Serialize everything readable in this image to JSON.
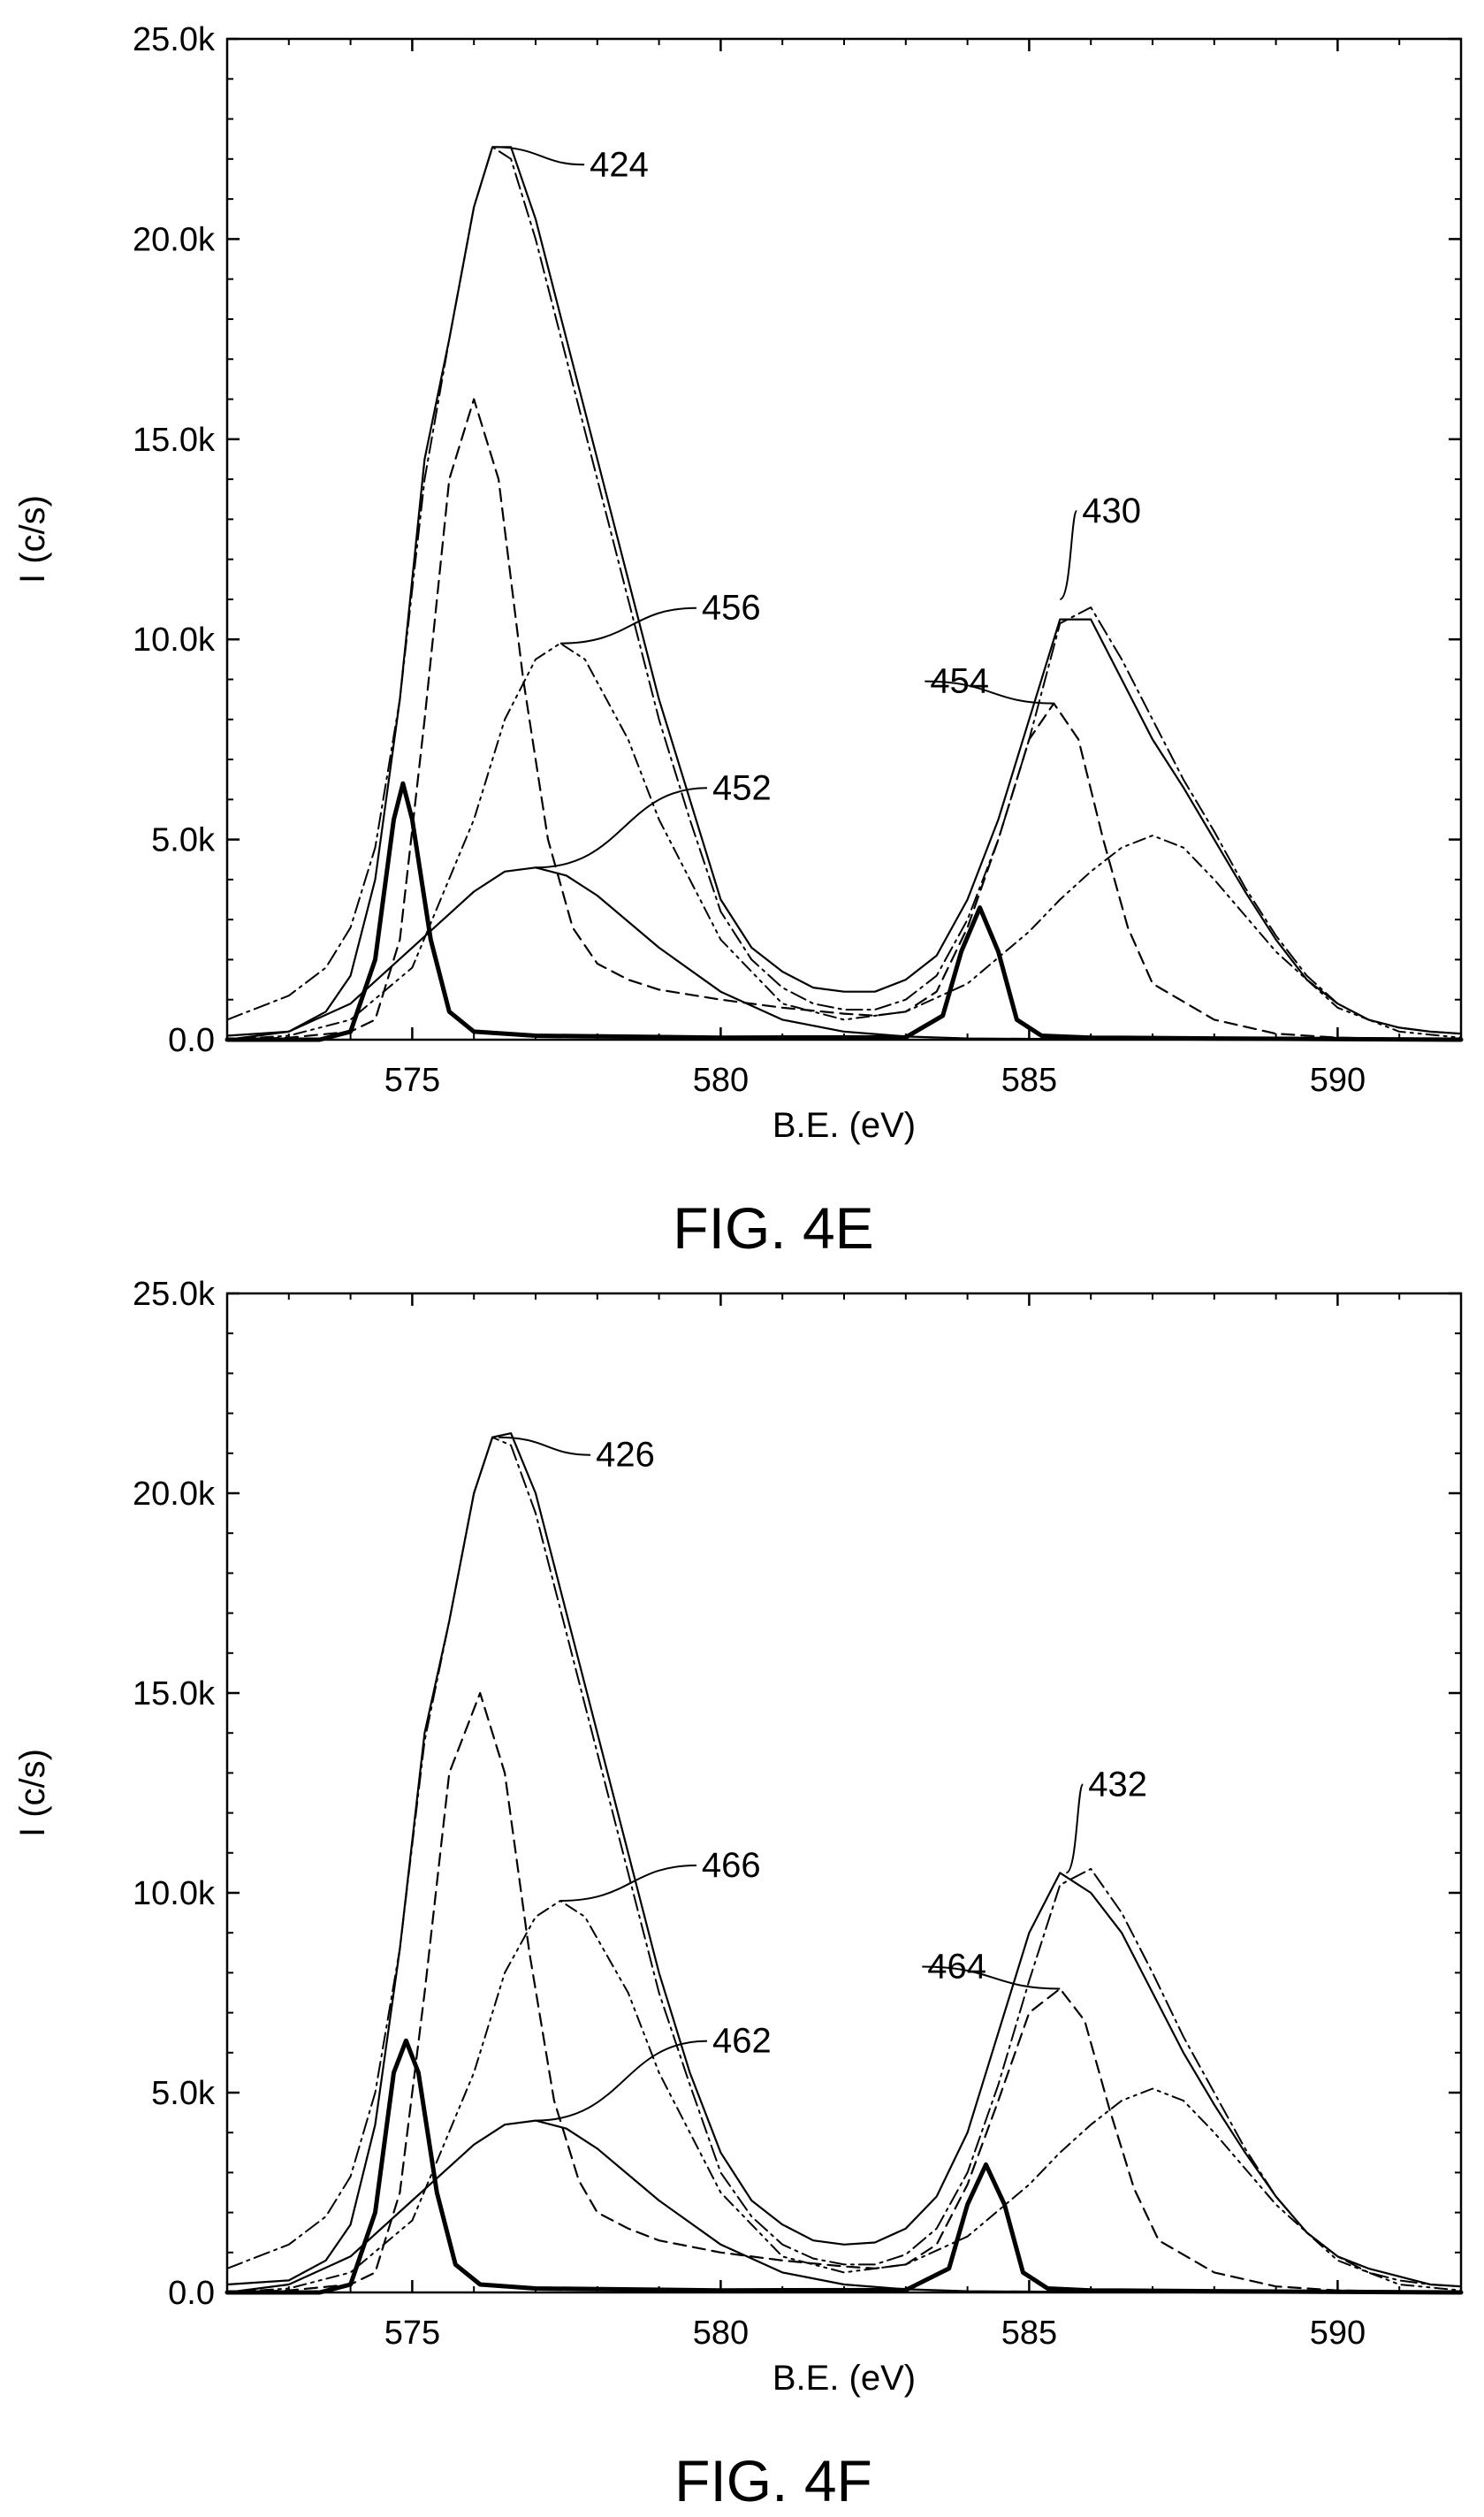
{
  "figures": [
    {
      "caption": "FIG. 4E"
    },
    {
      "caption": "FIG. 4F"
    }
  ],
  "chart_data": [
    {
      "type": "line",
      "title": "",
      "caption": "FIG. 4E",
      "xlabel": "B.E. (eV)",
      "ylabel": "I (c/s)",
      "xlim": [
        572,
        592
      ],
      "ylim": [
        0,
        25000
      ],
      "xticks": [
        575,
        580,
        585,
        590
      ],
      "xtick_labels": [
        "575",
        "580",
        "585",
        "590"
      ],
      "yticks": [
        0,
        5000,
        10000,
        15000,
        20000,
        25000
      ],
      "ytick_labels": [
        "0.0",
        "5.0k",
        "10.0k",
        "15.0k",
        "20.0k",
        "25.0k"
      ],
      "series": [
        {
          "style": "solid-thin",
          "x": [
            572,
            573,
            573.6,
            574,
            574.4,
            574.8,
            575.2,
            575.6,
            576,
            576.3,
            576.6,
            577,
            577.5,
            578,
            578.5,
            579,
            579.5,
            580,
            580.5,
            581,
            581.5,
            582,
            582.5,
            583,
            583.5,
            584,
            584.5,
            585,
            585.5,
            586,
            586.5,
            587,
            587.5,
            588,
            588.5,
            589,
            589.5,
            590,
            590.5,
            591,
            591.5,
            592
          ],
          "y": [
            100,
            200,
            700,
            1600,
            4000,
            8500,
            14500,
            17500,
            20800,
            22300,
            22300,
            20500,
            17500,
            14500,
            11500,
            8500,
            6000,
            3500,
            2300,
            1700,
            1300,
            1200,
            1200,
            1500,
            2100,
            3500,
            5500,
            8000,
            10500,
            10500,
            9000,
            7500,
            6300,
            5000,
            3700,
            2500,
            1500,
            900,
            500,
            300,
            200,
            150
          ]
        },
        {
          "style": "dash-dot",
          "x": [
            572,
            573,
            573.6,
            574,
            574.4,
            574.8,
            575.2,
            575.6,
            576,
            576.3,
            576.6,
            577,
            577.5,
            578,
            578.5,
            579,
            579.5,
            580,
            580.5,
            581,
            581.5,
            582,
            582.5,
            583,
            583.5,
            584,
            584.5,
            585,
            585.5,
            586,
            586.5,
            587,
            587.5,
            588,
            588.5,
            589,
            589.5,
            590,
            590.5,
            591,
            591.5,
            592
          ],
          "y": [
            500,
            1100,
            1800,
            2800,
            4800,
            8500,
            14000,
            17500,
            20800,
            22300,
            22000,
            20000,
            17000,
            14000,
            11000,
            8000,
            5500,
            3200,
            2000,
            1300,
            900,
            750,
            750,
            1000,
            1600,
            3000,
            5000,
            7500,
            10400,
            10800,
            9500,
            8000,
            6500,
            5200,
            3800,
            2600,
            1600,
            900,
            500,
            300,
            200,
            150
          ]
        },
        {
          "style": "dashed",
          "x": [
            572,
            573,
            574,
            574.4,
            574.8,
            575.2,
            575.6,
            576,
            576.4,
            576.8,
            577.2,
            577.6,
            578,
            578.5,
            579,
            580,
            581,
            582,
            582.5,
            583,
            583.5,
            584,
            584.5,
            585,
            585.4,
            585.8,
            586.2,
            586.6,
            587,
            588,
            589,
            590,
            592
          ],
          "y": [
            0,
            50,
            200,
            500,
            2500,
            8000,
            14000,
            16000,
            14000,
            9000,
            5000,
            2800,
            1900,
            1500,
            1250,
            1000,
            800,
            650,
            600,
            700,
            1200,
            2800,
            5000,
            7500,
            8400,
            7500,
            5000,
            2800,
            1400,
            500,
            150,
            50,
            0
          ]
        },
        {
          "style": "dash-dot-dot",
          "x": [
            572,
            573,
            574,
            575,
            576,
            576.5,
            577,
            577.4,
            577.8,
            578.5,
            579,
            580,
            581,
            582,
            583,
            584,
            585,
            585.5,
            586,
            586.5,
            587,
            587.5,
            588,
            589,
            590,
            591,
            592
          ],
          "y": [
            0,
            100,
            500,
            1800,
            5500,
            8000,
            9500,
            9900,
            9500,
            7500,
            5500,
            2500,
            900,
            500,
            700,
            1400,
            2700,
            3500,
            4200,
            4800,
            5100,
            4800,
            4000,
            2200,
            800,
            200,
            50
          ]
        },
        {
          "style": "solid-thick",
          "x": [
            572,
            573.5,
            574,
            574.4,
            574.7,
            574.85,
            575,
            575.3,
            575.6,
            576,
            577,
            580,
            583,
            583.6,
            583.9,
            584.2,
            584.5,
            584.8,
            585.2,
            586,
            588,
            592
          ],
          "y": [
            0,
            0,
            200,
            2000,
            5500,
            6400,
            5500,
            2500,
            700,
            200,
            100,
            50,
            60,
            600,
            2200,
            3300,
            2200,
            500,
            100,
            50,
            30,
            0
          ]
        },
        {
          "style": "solid-broad",
          "x": [
            572,
            573,
            574,
            575,
            575.5,
            576,
            576.5,
            577,
            577.5,
            578,
            579,
            580,
            581,
            582,
            583,
            584,
            586,
            588,
            592
          ],
          "y": [
            0,
            200,
            900,
            2300,
            3000,
            3700,
            4200,
            4300,
            4100,
            3600,
            2300,
            1200,
            500,
            200,
            80,
            30,
            10,
            0,
            0
          ]
        }
      ],
      "annotations": [
        {
          "text": "424",
          "x": 576.3,
          "y": 22300
        },
        {
          "text": "430",
          "x": 585.5,
          "y": 11000
        },
        {
          "text": "456",
          "x": 577.4,
          "y": 9900
        },
        {
          "text": "454",
          "x": 585.4,
          "y": 8400
        },
        {
          "text": "452",
          "x": 577,
          "y": 4300
        }
      ]
    },
    {
      "type": "line",
      "title": "",
      "caption": "FIG. 4F",
      "xlabel": "B.E. (eV)",
      "ylabel": "I (c/s)",
      "xlim": [
        572,
        592
      ],
      "ylim": [
        0,
        25000
      ],
      "xticks": [
        575,
        580,
        585,
        590
      ],
      "xtick_labels": [
        "575",
        "580",
        "585",
        "590"
      ],
      "yticks": [
        0,
        5000,
        10000,
        15000,
        20000,
        25000
      ],
      "ytick_labels": [
        "0.0",
        "5.0k",
        "10.0k",
        "15.0k",
        "20.0k",
        "25.0k"
      ],
      "series": [
        {
          "style": "solid-thin",
          "x": [
            572,
            573,
            573.6,
            574,
            574.4,
            574.8,
            575.2,
            575.6,
            576,
            576.3,
            576.6,
            577,
            577.5,
            578,
            578.5,
            579,
            579.5,
            580,
            580.5,
            581,
            581.5,
            582,
            582.5,
            583,
            583.5,
            584,
            584.5,
            585,
            585.5,
            586,
            586.5,
            587,
            587.5,
            588,
            588.5,
            589,
            589.5,
            590,
            590.5,
            591,
            591.5,
            592
          ],
          "y": [
            200,
            300,
            800,
            1700,
            4200,
            8600,
            14000,
            16800,
            20000,
            21400,
            21500,
            20000,
            17000,
            14000,
            11000,
            8000,
            5500,
            3500,
            2300,
            1700,
            1300,
            1200,
            1250,
            1600,
            2400,
            4000,
            6500,
            9000,
            10500,
            10000,
            9000,
            7500,
            6000,
            4700,
            3500,
            2400,
            1500,
            900,
            600,
            400,
            200,
            150
          ]
        },
        {
          "style": "dash-dot",
          "x": [
            572,
            573,
            573.6,
            574,
            574.4,
            574.8,
            575.2,
            575.6,
            576,
            576.3,
            576.6,
            577,
            577.5,
            578,
            578.5,
            579,
            579.5,
            580,
            580.5,
            581,
            581.5,
            582,
            582.5,
            583,
            583.5,
            584,
            584.5,
            585,
            585.5,
            586,
            586.5,
            587,
            587.5,
            588,
            588.5,
            589,
            589.5,
            590,
            590.5,
            591,
            591.5,
            592
          ],
          "y": [
            600,
            1200,
            1900,
            2900,
            5000,
            8600,
            13800,
            16800,
            20000,
            21400,
            21200,
            19500,
            16500,
            13500,
            10500,
            7500,
            5200,
            3000,
            1900,
            1200,
            850,
            700,
            700,
            950,
            1600,
            3000,
            5200,
            7800,
            10200,
            10600,
            9500,
            8000,
            6400,
            5000,
            3600,
            2400,
            1500,
            900,
            500,
            300,
            200,
            150
          ]
        },
        {
          "style": "dashed",
          "x": [
            572,
            573,
            574,
            574.4,
            574.8,
            575.2,
            575.6,
            576.1,
            576.5,
            576.9,
            577.3,
            577.7,
            578,
            578.5,
            579,
            580,
            581,
            582,
            582.5,
            583,
            583.5,
            584,
            584.5,
            585,
            585.5,
            585.9,
            586.3,
            586.7,
            587.1,
            588,
            589,
            590,
            592
          ],
          "y": [
            0,
            50,
            200,
            500,
            2500,
            7500,
            13000,
            15000,
            13000,
            8500,
            4800,
            2800,
            2000,
            1600,
            1300,
            1000,
            800,
            650,
            600,
            700,
            1200,
            2700,
            4800,
            7000,
            7600,
            6800,
            4600,
            2600,
            1300,
            500,
            150,
            50,
            0
          ]
        },
        {
          "style": "dash-dot-dot",
          "x": [
            572,
            573,
            574,
            575,
            576,
            576.5,
            577,
            577.4,
            577.8,
            578.5,
            579,
            580,
            581,
            582,
            583,
            584,
            585,
            585.5,
            586,
            586.5,
            587,
            587.5,
            588,
            589,
            590,
            591,
            592
          ],
          "y": [
            0,
            100,
            500,
            1800,
            5500,
            8000,
            9400,
            9800,
            9400,
            7500,
            5500,
            2500,
            900,
            500,
            700,
            1400,
            2700,
            3500,
            4200,
            4800,
            5100,
            4800,
            4000,
            2200,
            800,
            200,
            50
          ]
        },
        {
          "style": "solid-thick",
          "x": [
            572,
            573.5,
            574,
            574.4,
            574.7,
            574.9,
            575.1,
            575.4,
            575.7,
            576.1,
            577,
            580,
            583,
            583.7,
            584,
            584.3,
            584.6,
            584.9,
            585.3,
            586,
            588,
            592
          ],
          "y": [
            0,
            0,
            200,
            2000,
            5500,
            6300,
            5500,
            2500,
            700,
            200,
            100,
            50,
            60,
            600,
            2200,
            3200,
            2200,
            500,
            100,
            50,
            30,
            0
          ]
        },
        {
          "style": "solid-broad",
          "x": [
            572,
            573,
            574,
            575,
            575.5,
            576,
            576.5,
            577,
            577.5,
            578,
            579,
            580,
            581,
            582,
            583,
            584,
            586,
            588,
            592
          ],
          "y": [
            0,
            200,
            900,
            2300,
            3000,
            3700,
            4200,
            4300,
            4100,
            3600,
            2300,
            1200,
            500,
            200,
            80,
            30,
            10,
            0,
            0
          ]
        }
      ],
      "annotations": [
        {
          "text": "426",
          "x": 576.4,
          "y": 21400
        },
        {
          "text": "432",
          "x": 585.6,
          "y": 10500
        },
        {
          "text": "466",
          "x": 577.4,
          "y": 9800
        },
        {
          "text": "464",
          "x": 585.5,
          "y": 7600
        },
        {
          "text": "462",
          "x": 577,
          "y": 4300
        }
      ]
    }
  ]
}
